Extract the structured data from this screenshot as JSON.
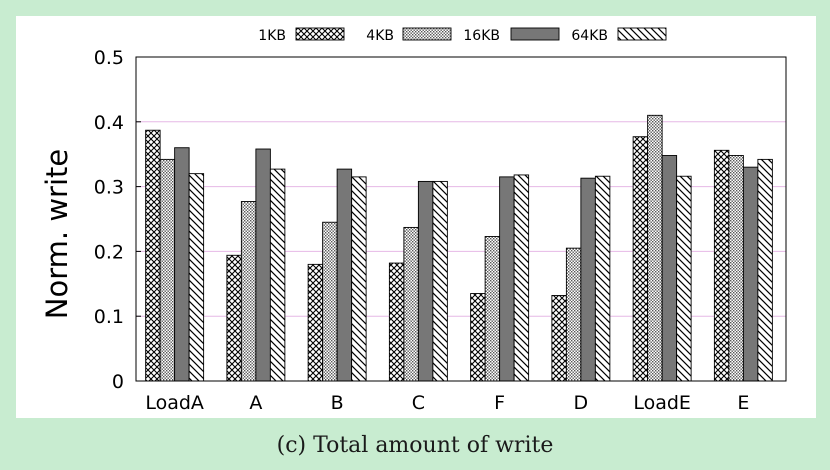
{
  "caption": "(c) Total amount of write",
  "chart_data": {
    "type": "bar",
    "title": "",
    "xlabel": "",
    "ylabel": "Norm. write",
    "ylim": [
      0,
      0.5
    ],
    "yticks": [
      "0",
      "0.1",
      "0.2",
      "0.3",
      "0.4",
      "0.5"
    ],
    "categories": [
      "LoadA",
      "A",
      "B",
      "C",
      "F",
      "D",
      "LoadE",
      "E"
    ],
    "legend_position": "top",
    "grid": "horizontal",
    "series": [
      {
        "name": "1KB",
        "pattern": "crosshatch",
        "values": [
          0.387,
          0.194,
          0.18,
          0.182,
          0.135,
          0.132,
          0.377,
          0.356
        ]
      },
      {
        "name": "4KB",
        "pattern": "dots",
        "values": [
          0.342,
          0.277,
          0.245,
          0.237,
          0.223,
          0.205,
          0.41,
          0.348
        ]
      },
      {
        "name": "16KB",
        "pattern": "solid-gray",
        "values": [
          0.36,
          0.358,
          0.327,
          0.308,
          0.315,
          0.313,
          0.348,
          0.33
        ]
      },
      {
        "name": "64KB",
        "pattern": "diagonal-stripes",
        "values": [
          0.32,
          0.327,
          0.315,
          0.308,
          0.318,
          0.316,
          0.316,
          0.342
        ]
      }
    ],
    "colors": {
      "grid": "#e6b8e6",
      "bar_fill": "#777777",
      "bar_stroke": "#000000"
    }
  }
}
